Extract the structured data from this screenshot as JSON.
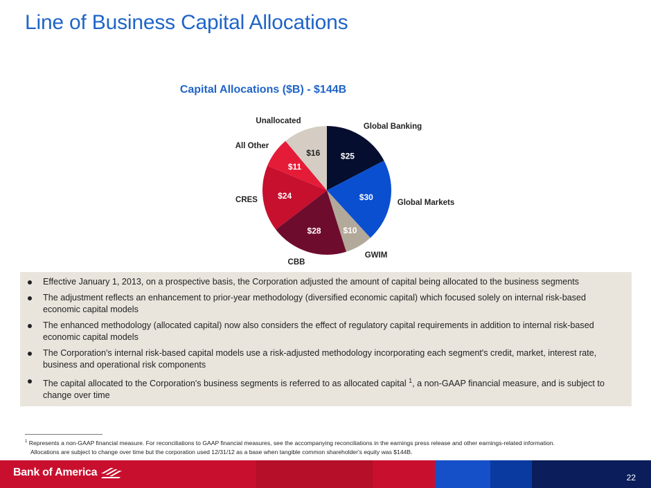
{
  "page": {
    "title": "Line of Business Capital Allocations",
    "page_number": "22"
  },
  "chart_data": {
    "type": "pie",
    "title": "Capital Allocations ($B) - $144B",
    "slices": [
      {
        "name": "Global Banking",
        "value": 25,
        "value_label": "$25",
        "color": "#050e2e",
        "label_color": "#ffffff"
      },
      {
        "name": "Global Markets",
        "value": 30,
        "value_label": "$30",
        "color": "#0a4fd0",
        "label_color": "#ffffff"
      },
      {
        "name": "GWIM",
        "value": 10,
        "value_label": "$10",
        "color": "#b3a99a",
        "label_color": "#ffffff"
      },
      {
        "name": "CBB",
        "value": 28,
        "value_label": "$28",
        "color": "#6e0c2e",
        "label_color": "#ffffff"
      },
      {
        "name": "CRES",
        "value": 24,
        "value_label": "$24",
        "color": "#c6102e",
        "label_color": "#ffffff"
      },
      {
        "name": "All Other",
        "value": 11,
        "value_label": "$11",
        "color": "#e41c38",
        "label_color": "#ffffff"
      },
      {
        "name": "Unallocated",
        "value": 16,
        "value_label": "$16",
        "color": "#d5cdc3",
        "label_color": "#222222"
      }
    ]
  },
  "bullets": [
    "Effective January 1, 2013, on a prospective basis, the Corporation adjusted the amount of capital being allocated to the business segments",
    "The adjustment reflects an enhancement to prior-year methodology (diversified economic capital) which focused solely on internal risk-based economic capital models",
    "The enhanced methodology (allocated capital) now also considers the effect of regulatory capital requirements in addition to internal risk-based economic capital models",
    "The Corporation's internal risk-based capital models use a risk-adjusted methodology incorporating each segment's credit, market, interest rate, business and operational risk components"
  ],
  "last_bullet": {
    "text_before": "The capital allocated to the Corporation's business segments is referred to as allocated capital ",
    "superscript": "1",
    "text_after": ", a non-GAAP financial measure, and is subject to change over time"
  },
  "footnote": {
    "marker": "1",
    "line1": " Represents a non-GAAP financial measure. For reconciliations to GAAP financial measures, see the accompanying reconciliations in the earnings press release and other earnings-related information.",
    "line2": "Allocations are subject to change over time but the corporation used 12/31/12 as a base when tangible common shareholder's equity was $144B."
  },
  "footer": {
    "logo_text": "Bank of America",
    "band_colors": [
      "#c8102e",
      "#b50f2a",
      "#c8102e",
      "#1650c8",
      "#0a3aa0",
      "#0b1e5b"
    ]
  }
}
